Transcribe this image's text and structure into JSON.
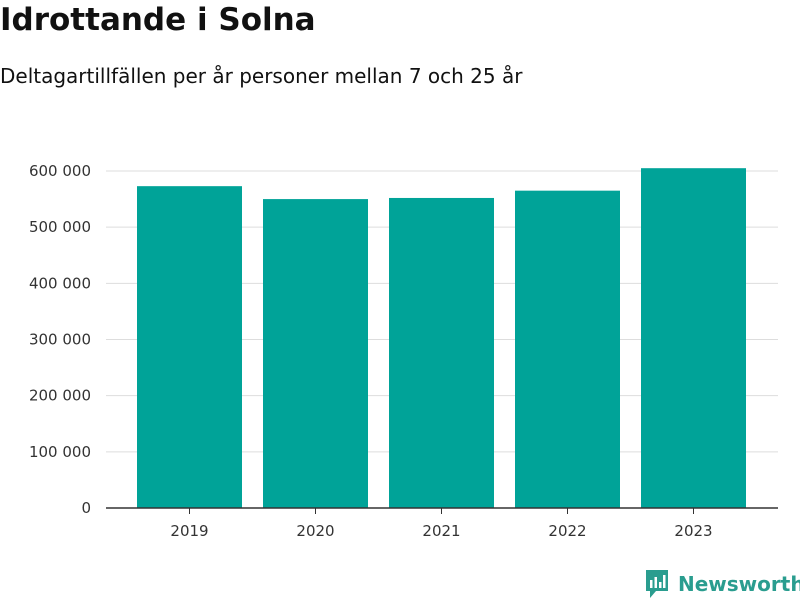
{
  "title": "Idrottande i Solna",
  "subtitle": "Deltagartillfällen per år personer mellan 7 och 25 år",
  "brand": {
    "name": "Newsworthy",
    "color": "#2a9d8f",
    "icon": "newsworthy-logo-icon"
  },
  "colors": {
    "bar": "#00a398",
    "grid": "#dddddd",
    "axis": "#333333"
  },
  "chart_data": {
    "type": "bar",
    "title": "Idrottande i Solna",
    "subtitle": "Deltagartillfällen per år personer mellan 7 och 25 år",
    "xlabel": "",
    "ylabel": "",
    "categories": [
      "2019",
      "2020",
      "2021",
      "2022",
      "2023"
    ],
    "values": [
      573000,
      550000,
      552000,
      565000,
      605000
    ],
    "ylim": [
      0,
      600000
    ],
    "yticks": [
      0,
      100000,
      200000,
      300000,
      400000,
      500000,
      600000
    ],
    "ytick_labels": [
      "0",
      "100 000",
      "200 000",
      "300 000",
      "400 000",
      "500 000",
      "600 000"
    ],
    "grid": true,
    "legend": "none"
  }
}
